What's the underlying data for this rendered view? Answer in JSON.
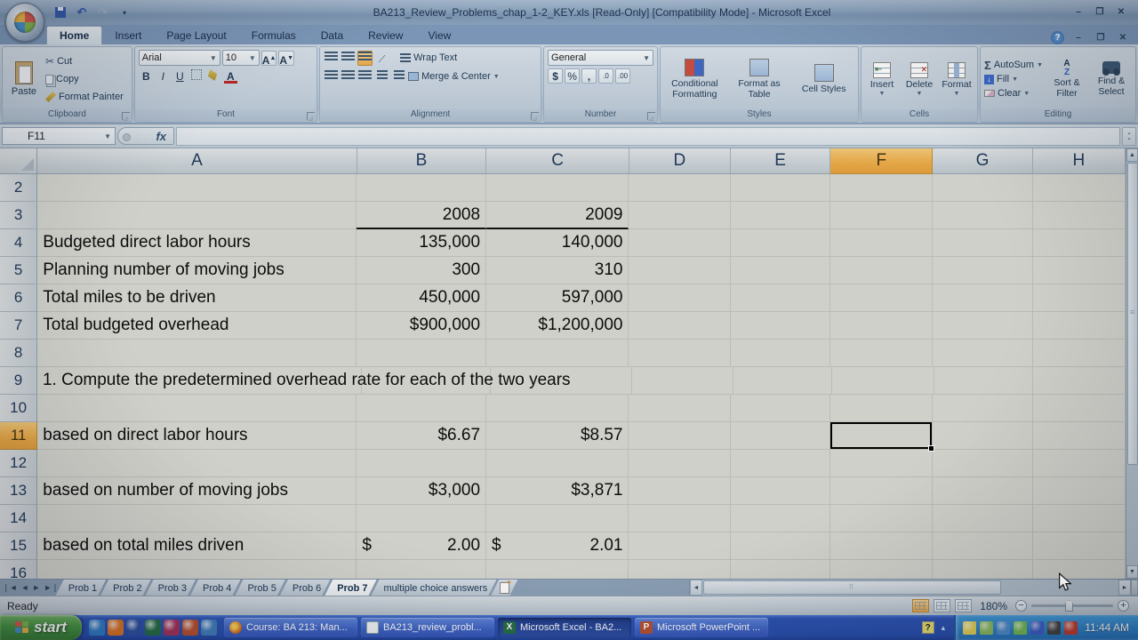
{
  "window": {
    "title": "BA213_Review_Problems_chap_1-2_KEY.xls  [Read-Only]  [Compatibility Mode] - Microsoft Excel",
    "minimize": "–",
    "restore": "❐",
    "close": "✕",
    "help": "?"
  },
  "quick_access": {
    "more": "▾",
    "undo": "↶",
    "redo": "↷"
  },
  "ribbon": {
    "tabs": [
      "Home",
      "Insert",
      "Page Layout",
      "Formulas",
      "Data",
      "Review",
      "View"
    ],
    "active_tab": "Home",
    "clipboard": {
      "label": "Clipboard",
      "paste": "Paste",
      "cut": "Cut",
      "copy": "Copy",
      "format_painter": "Format Painter"
    },
    "font": {
      "label": "Font",
      "family": "Arial",
      "size": "10",
      "bold": "B",
      "italic": "I",
      "underline": "U",
      "grow": "A",
      "shrink": "A"
    },
    "alignment": {
      "label": "Alignment",
      "wrap": "Wrap Text",
      "merge": "Merge & Center"
    },
    "number": {
      "label": "Number",
      "format": "General",
      "currency": "$",
      "percent": "%",
      "comma": ",",
      "inc_dec": ".0",
      "dec_dec": ".00"
    },
    "styles": {
      "label": "Styles",
      "conditional": "Conditional Formatting",
      "format_table": "Format as Table",
      "cell_styles": "Cell Styles"
    },
    "cells": {
      "label": "Cells",
      "insert": "Insert",
      "delete": "Delete",
      "format": "Format"
    },
    "editing": {
      "label": "Editing",
      "autosum": "AutoSum",
      "fill": "Fill",
      "clear": "Clear",
      "sort": "Sort & Filter",
      "find": "Find & Select"
    }
  },
  "formula_bar": {
    "name_box": "F11",
    "fx": "fx"
  },
  "grid": {
    "columns": [
      "A",
      "B",
      "C",
      "D",
      "E",
      "F",
      "G",
      "H"
    ],
    "selected_column": "F",
    "selected_row": "11",
    "selected_cell": "F11",
    "rows": [
      {
        "n": "2",
        "cells": {}
      },
      {
        "n": "3",
        "cells": {
          "B": "2008",
          "C": "2009"
        },
        "underline": [
          "B",
          "C"
        ]
      },
      {
        "n": "4",
        "cells": {
          "A": "Budgeted direct labor hours",
          "B": "135,000",
          "C": "140,000"
        }
      },
      {
        "n": "5",
        "cells": {
          "A": "Planning number of moving jobs",
          "B": "300",
          "C": "310"
        }
      },
      {
        "n": "6",
        "cells": {
          "A": "Total miles to be driven",
          "B": "450,000",
          "C": "597,000"
        }
      },
      {
        "n": "7",
        "cells": {
          "A": "Total budgeted overhead",
          "B": "$900,000",
          "C": "$1,200,000"
        }
      },
      {
        "n": "8",
        "cells": {}
      },
      {
        "n": "9",
        "cells": {
          "A": "1. Compute the predetermined overhead rate for each of the two years"
        },
        "spill": true
      },
      {
        "n": "10",
        "cells": {}
      },
      {
        "n": "11",
        "cells": {
          "A": "based on direct labor hours",
          "B": "$6.67",
          "C": "$8.57"
        },
        "selected_cell": "F"
      },
      {
        "n": "12",
        "cells": {}
      },
      {
        "n": "13",
        "cells": {
          "A": "based on number of moving jobs",
          "B": "$3,000",
          "C": "$3,871"
        }
      },
      {
        "n": "14",
        "cells": {}
      },
      {
        "n": "15",
        "cells": {
          "A": "based on total miles driven",
          "B": {
            "cur": "$",
            "val": "2.00"
          },
          "C": {
            "cur": "$",
            "val": "2.01"
          }
        }
      },
      {
        "n": "16",
        "cells": {}
      }
    ]
  },
  "sheet_tabs": {
    "tabs": [
      "Prob 1",
      "Prob 2",
      "Prob 3",
      "Prob 4",
      "Prob 5",
      "Prob 6",
      "Prob 7",
      "multiple choice answers"
    ],
    "active": "Prob 7"
  },
  "status_bar": {
    "mode": "Ready",
    "zoom": "180%"
  },
  "taskbar": {
    "start": "start",
    "quick_launch": [
      "internet-explorer-icon",
      "firefox-icon",
      "word-icon",
      "excel-icon",
      "access-icon",
      "powerpoint-icon",
      "outlook-icon"
    ],
    "buttons": [
      {
        "label": "Course: BA 213: Man...",
        "icon": "firefox",
        "active": false
      },
      {
        "label": "BA213_review_probl...",
        "icon": "document",
        "active": false
      },
      {
        "label": "Microsoft Excel - BA2...",
        "icon": "excel",
        "active": true
      },
      {
        "label": "Microsoft PowerPoint ...",
        "icon": "powerpoint",
        "active": false
      }
    ],
    "tray_icons": [
      "tray-app-1-icon",
      "tray-app-2-icon",
      "tray-app-3-icon",
      "tray-app-4-icon",
      "tray-app-5-icon",
      "tray-app-6-icon",
      "tray-app-7-icon"
    ],
    "clock": "11:44 AM"
  }
}
